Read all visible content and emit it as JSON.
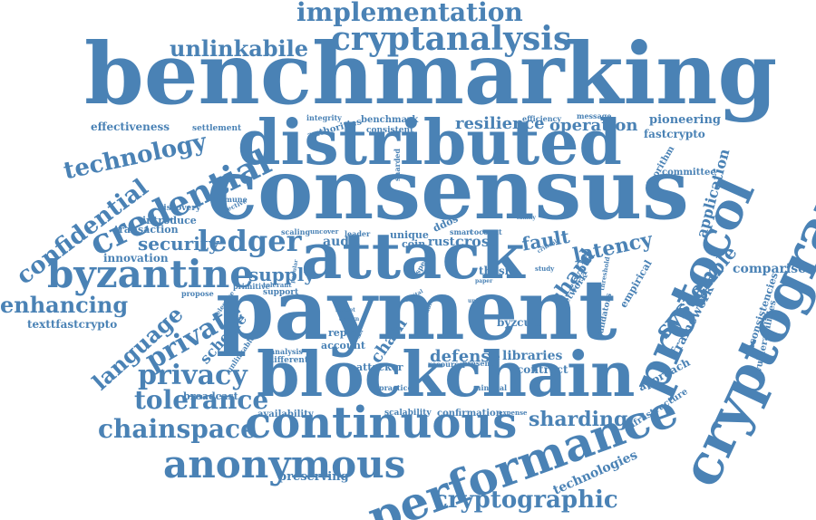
{
  "colors": {
    "word": "#4a82b5",
    "background": "#ffffff"
  },
  "words": [
    "benchmarking",
    "consensus",
    "payment",
    "distributed",
    "attack",
    "blockchain",
    "cryptography",
    "protocol",
    "performance",
    "continuous",
    "byzantine",
    "anonymous",
    "cryptanalysis",
    "credential",
    "implementation",
    "cryptographic",
    "technology",
    "confidential",
    "ledger",
    "privacy",
    "private",
    "chainspace",
    "tolerance",
    "sharding",
    "enhancing",
    "language",
    "security",
    "system",
    "latency",
    "scalable",
    "supply",
    "unlinkabile",
    "application",
    "shard",
    "defense",
    "resilience",
    "operation",
    "framework",
    "comparison",
    "fault",
    "cross",
    "audit",
    "rust",
    "pioneering",
    "fastcrypto",
    "technologies",
    "preserving",
    "infrastructure",
    "approach",
    "inconsistencies",
    "vulnerabilities",
    "texttfastcrypto",
    "innovation",
    "scheme",
    "effectiveness",
    "chain",
    "libraries",
    "contract",
    "byzcuit",
    "thesis",
    "broadcast",
    "transaction",
    "introduce",
    "ddos",
    "replay",
    "attacker",
    "account",
    "availability",
    "scalability",
    "confirmation",
    "unique",
    "coin",
    "crypto",
    "network",
    "empirical",
    "validators",
    "committee",
    "algorithm",
    "settlement",
    "benchmark",
    "consistent",
    "authorities",
    "integrity",
    "efficiency",
    "message",
    "sharded",
    "immune",
    "effective",
    "discovery",
    "primitive",
    "tolerant",
    "support",
    "propose",
    "selective",
    "analysis",
    "different",
    "unlinkable",
    "practice",
    "minimal",
    "present",
    "resource",
    "expense",
    "smart",
    "coconut",
    "leader",
    "uncover",
    "scaling",
    "threshold",
    "critical",
    "study",
    "family",
    "unfair",
    "paper",
    "popular",
    "subset",
    "design",
    "double",
    "speed",
    "digital"
  ]
}
